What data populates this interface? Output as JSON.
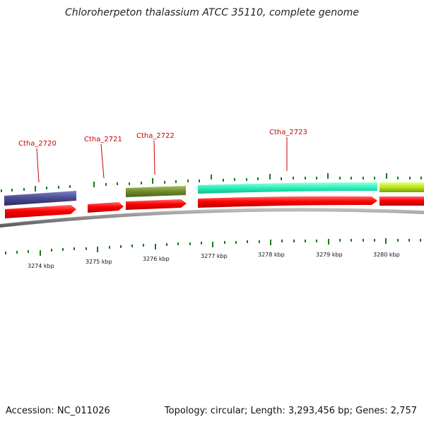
{
  "title": "Chloroherpeton thalassium ATCC 35110, complete genome",
  "footer": {
    "accession": "Accession: NC_011026",
    "summary": "Topology: circular; Length: 3,293,456 bp; Genes: 2,757"
  },
  "colors": {
    "cds": "#ff0000",
    "gene_track_1": "#4a4a90",
    "gene_track_2": "#6f8a2c",
    "gene_track_3": "#26f0b8",
    "gene_track_4": "#b6e619",
    "backbone": "#8a8a8a",
    "ticks": "#1a7a1a",
    "label": "#cc0000"
  },
  "gene_labels": [
    "Ctha_2720",
    "Ctha_2721",
    "Ctha_2722",
    "Ctha_2723"
  ],
  "kbp_labels": [
    "3274 kbp",
    "3275 kbp",
    "3276 kbp",
    "3277 kbp",
    "3278 kbp",
    "3279 kbp",
    "3280 kbp"
  ]
}
